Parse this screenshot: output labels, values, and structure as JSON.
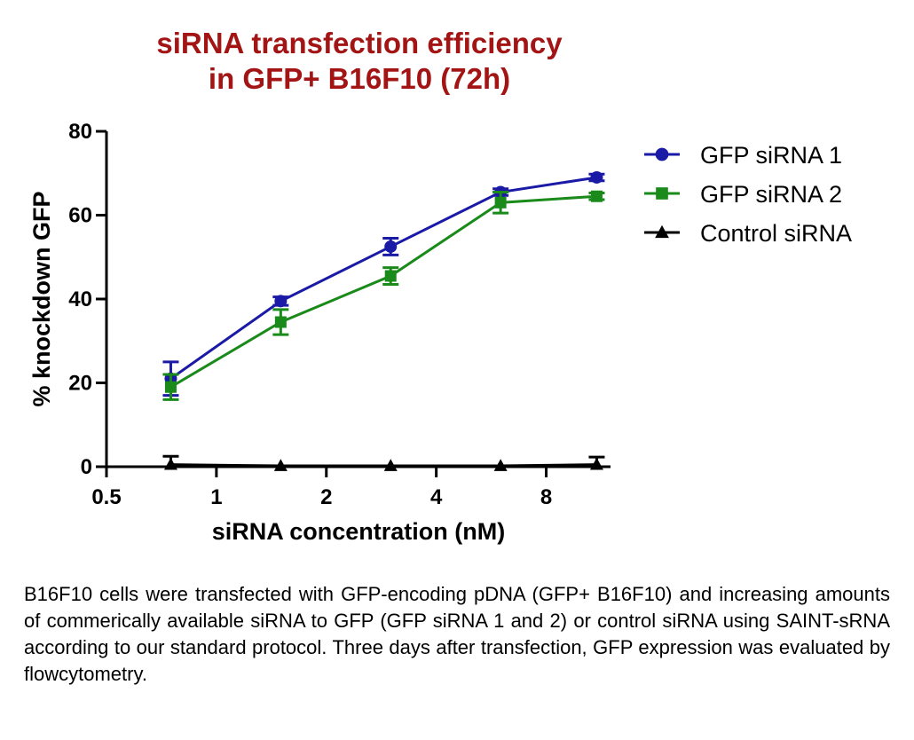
{
  "chart_data": {
    "type": "line",
    "title_lines": [
      "siRNA transfection efficiency",
      "in GFP+ B16F10 (72h)"
    ],
    "title_color": "#a31515",
    "xlabel": "siRNA concentration (nM)",
    "ylabel": "% knockdown GFP",
    "x_scale": "log2",
    "xlim": [
      0.5,
      12
    ],
    "x_ticks": [
      0.5,
      1,
      2,
      4,
      8
    ],
    "x_tick_labels": [
      "0.5",
      "1",
      "2",
      "4",
      "8"
    ],
    "ylim": [
      0,
      80
    ],
    "y_ticks": [
      0,
      20,
      40,
      60,
      80
    ],
    "y_tick_labels": [
      "0",
      "20",
      "40",
      "60",
      "80"
    ],
    "grid": false,
    "legend_position": "top-right",
    "series": [
      {
        "name": "GFP siRNA 1",
        "color": "#1a1aa6",
        "marker": "circle",
        "x": [
          0.75,
          1.5,
          3,
          6,
          11
        ],
        "y": [
          21,
          39.5,
          52.5,
          65.5,
          69
        ],
        "err": [
          4,
          1,
          2,
          0.8,
          0.8
        ]
      },
      {
        "name": "GFP siRNA 2",
        "color": "#1a8a1a",
        "marker": "square",
        "x": [
          0.75,
          1.5,
          3,
          6,
          11
        ],
        "y": [
          19,
          34.5,
          45.5,
          63,
          64.5
        ],
        "err": [
          3,
          3,
          2,
          2.5,
          0.8
        ]
      },
      {
        "name": "Control siRNA",
        "color": "#000000",
        "marker": "triangle",
        "x": [
          0.75,
          1.5,
          3,
          6,
          11
        ],
        "y": [
          0.5,
          0.2,
          0.2,
          0.2,
          0.5
        ],
        "err": [
          2,
          0,
          0,
          0,
          1.8
        ]
      }
    ]
  },
  "caption": "B16F10 cells were transfected with GFP-encoding pDNA (GFP+ B16F10) and increasing amounts of commerically available siRNA to GFP (GFP siRNA 1 and 2) or control siRNA using SAINT-sRNA according to our standard protocol. Three days after transfection, GFP expression was evaluated by flowcytometry."
}
